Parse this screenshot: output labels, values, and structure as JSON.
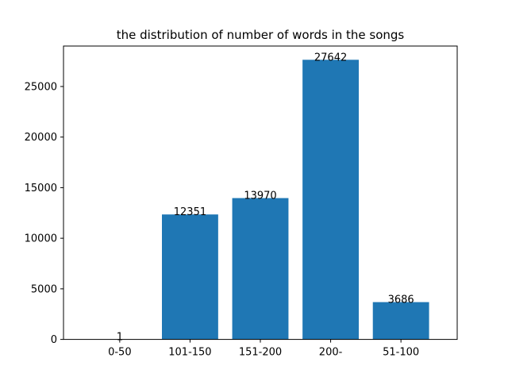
{
  "chart_data": {
    "type": "bar",
    "title": "the distribution of number of words in the songs",
    "xlabel": "",
    "ylabel": "",
    "categories": [
      "0-50",
      "101-150",
      "151-200",
      "200-",
      "51-100"
    ],
    "values": [
      1,
      12351,
      13970,
      27642,
      3686
    ],
    "value_labels": [
      "1",
      "12351",
      "13970",
      "27642",
      "3686"
    ],
    "ylim": [
      0,
      29000
    ],
    "yticks": [
      0,
      5000,
      10000,
      15000,
      20000,
      25000
    ],
    "ytick_labels": [
      "0",
      "5000",
      "10000",
      "15000",
      "20000",
      "25000"
    ],
    "grid": false,
    "legend": "none",
    "bar_color": "#1f77b4"
  }
}
